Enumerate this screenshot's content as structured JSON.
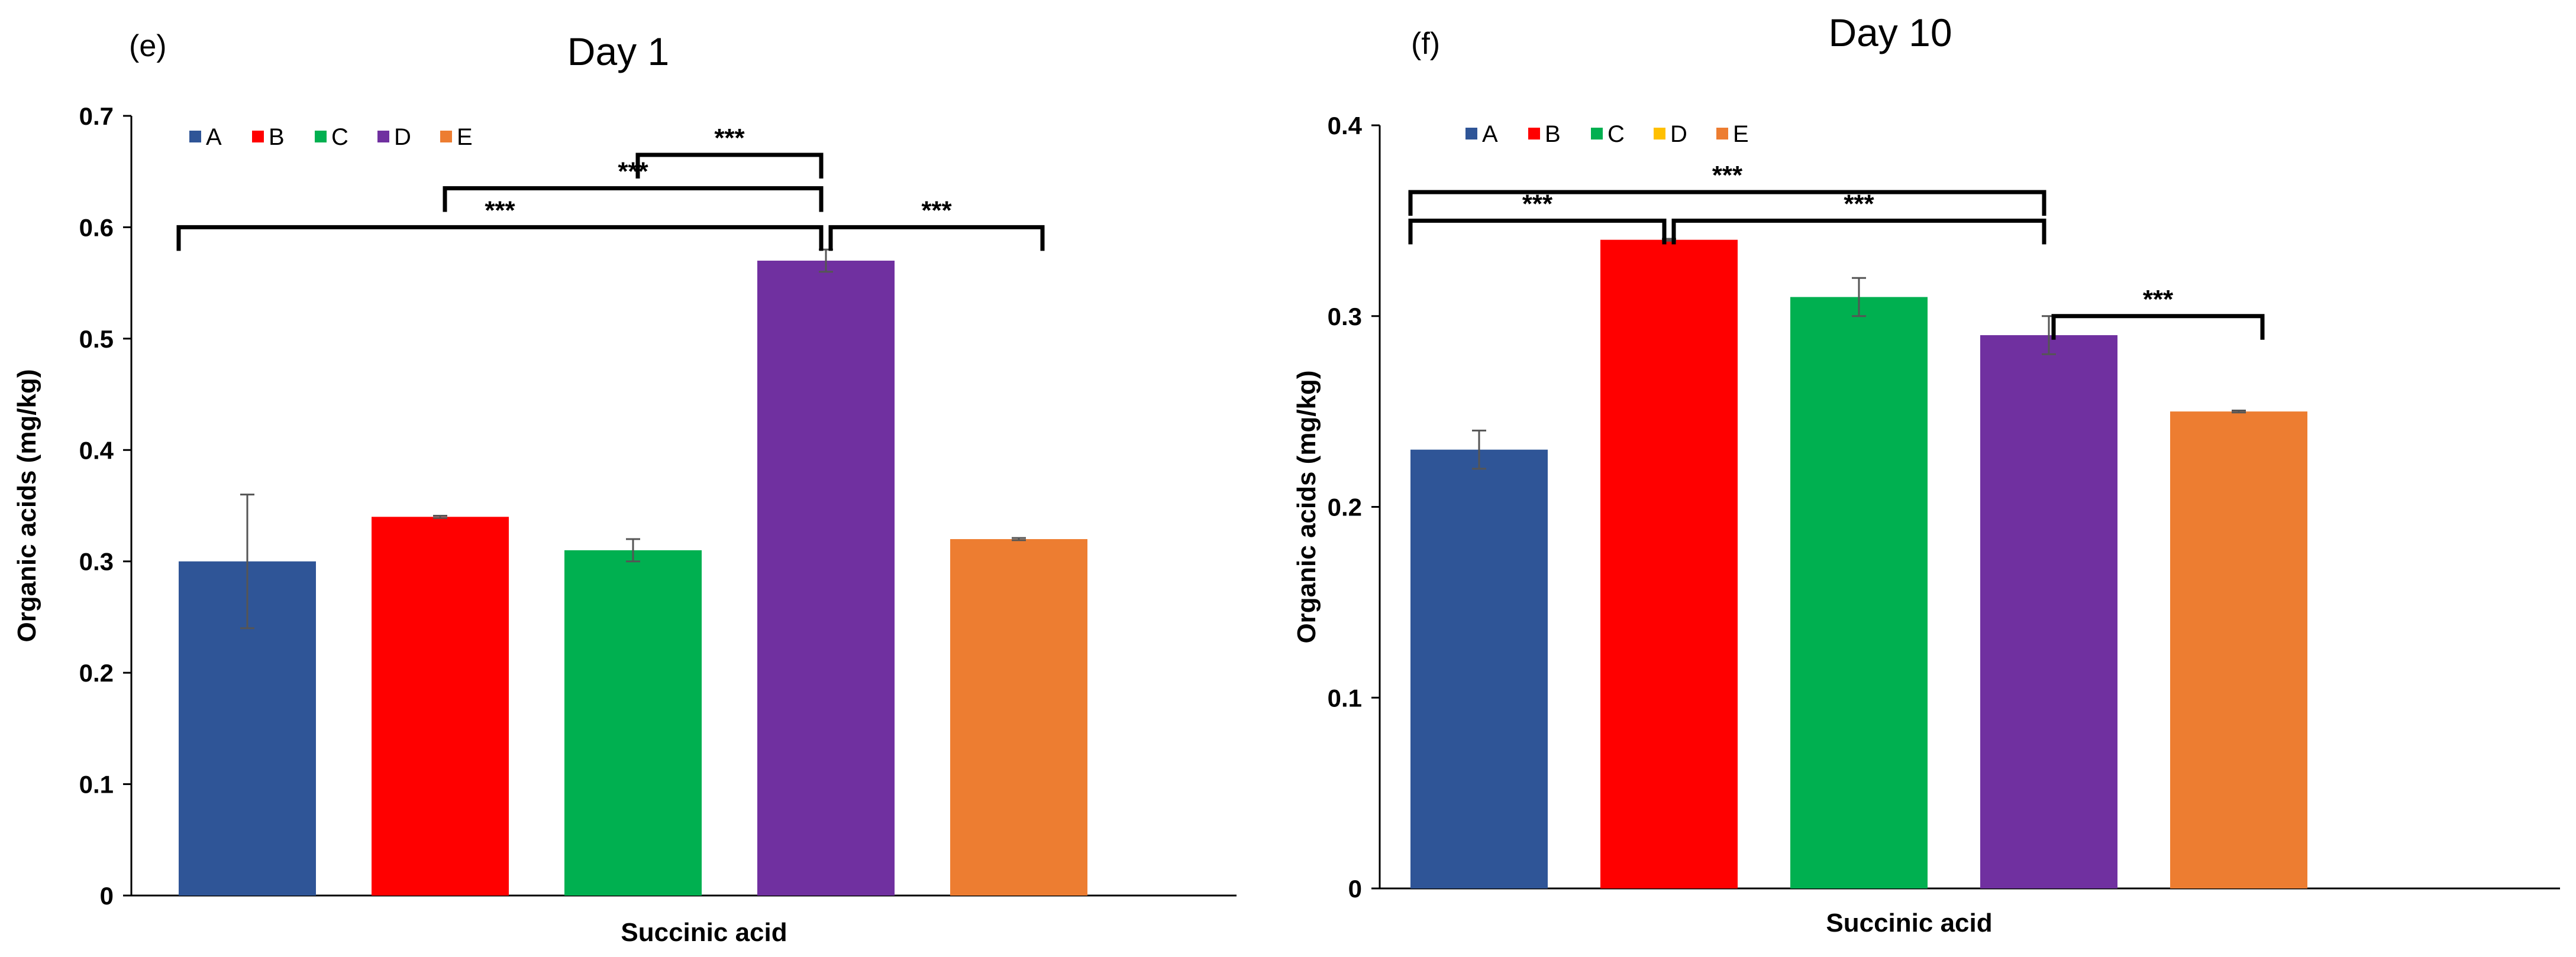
{
  "chart_data": [
    {
      "type": "bar",
      "panel": "(e)",
      "title": "Day 1",
      "xlabel": "Succinic acid",
      "ylabel": "Organic acids (mg/kg)",
      "ylim": [
        0,
        0.7
      ],
      "yticks": [
        0,
        0.1,
        0.2,
        0.3,
        0.4,
        0.5,
        0.6,
        0.7
      ],
      "ytick_labels": [
        "0",
        "0.1",
        "0.2",
        "0.3",
        "0.4",
        "0.5",
        "0.6",
        "0.7"
      ],
      "legend_position": "top-left",
      "categories": [
        "A",
        "B",
        "C",
        "D",
        "E"
      ],
      "colors": [
        "#2F5597",
        "#FF0000",
        "#00B050",
        "#7030A0",
        "#ED7D31"
      ],
      "values": [
        0.3,
        0.34,
        0.31,
        0.57,
        0.32
      ],
      "errors": [
        0.06,
        0.001,
        0.01,
        0.01,
        0.001
      ],
      "significance": [
        {
          "from": 0,
          "to": 3,
          "label": "***",
          "y": 0.6
        },
        {
          "from": 1,
          "to": 3,
          "label": "***",
          "y": 0.635
        },
        {
          "from": 2,
          "to": 3,
          "label": "***",
          "y": 0.665
        },
        {
          "from": 3,
          "to": 4,
          "label": "***",
          "y": 0.6
        }
      ]
    },
    {
      "type": "bar",
      "panel": "(f)",
      "title": "Day 10",
      "xlabel": "Succinic acid",
      "ylabel": "Organic acids (mg/kg)",
      "ylim": [
        0,
        0.4
      ],
      "yticks": [
        0,
        0.1,
        0.2,
        0.3,
        0.4
      ],
      "ytick_labels": [
        "0",
        "0.1",
        "0.2",
        "0.3",
        "0.4"
      ],
      "legend_position": "top-left",
      "categories": [
        "A",
        "B",
        "C",
        "D",
        "E"
      ],
      "colors": [
        "#2F5597",
        "#FF0000",
        "#00B050",
        "#FFC000",
        "#ED7D31"
      ],
      "values": [
        0.23,
        0.34,
        0.31,
        0.29,
        0.25
      ],
      "errors": [
        0.01,
        0.0005,
        0.01,
        0.01,
        0.0005
      ],
      "bar_colors": [
        "#2F5597",
        "#FF0000",
        "#00B050",
        "#7030A0",
        "#ED7D31"
      ],
      "significance": [
        {
          "from": 0,
          "to": 1,
          "label": "***",
          "y": 0.35
        },
        {
          "from": 1,
          "to": 3,
          "label": "***",
          "y": 0.35
        },
        {
          "from": 0,
          "to": 3,
          "label": "***",
          "y": 0.365
        },
        {
          "from": 3,
          "to": 4,
          "label": "***",
          "y": 0.3
        }
      ]
    }
  ]
}
